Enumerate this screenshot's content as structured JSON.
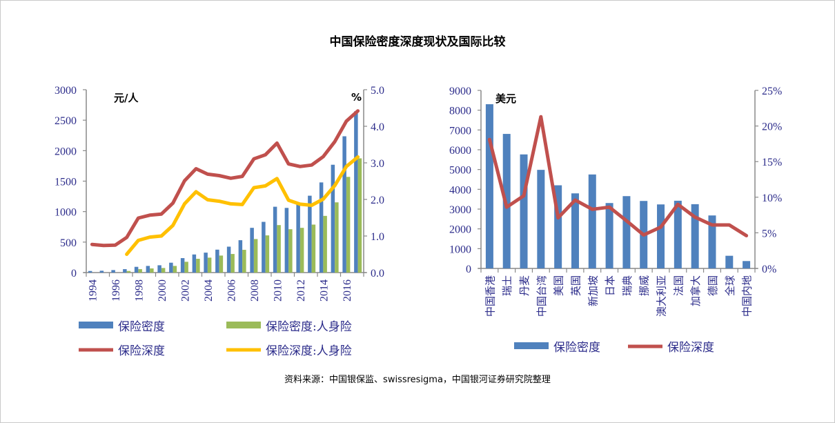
{
  "title": "中国保险密度深度现状及国际比较",
  "source": "资料来源：中国银保监、swissresigma，中国银河证券研究院整理",
  "colors": {
    "density": "#4f81bd",
    "life_density": "#9bbb59",
    "depth": "#c0504d",
    "life_depth": "#ffc000",
    "axis_text": "#2b2b8a"
  },
  "chart_data": [
    {
      "type": "bar+line",
      "left_unit": "元/人",
      "right_unit": "%",
      "ylim_left": [
        0,
        3000
      ],
      "yticks_left": [
        "0",
        "500",
        "1000",
        "1500",
        "2000",
        "2500",
        "3000"
      ],
      "ylim_right": [
        0,
        5
      ],
      "yticks_right": [
        "0.0",
        "1.0",
        "2.0",
        "3.0",
        "4.0",
        "5.0"
      ],
      "grid": false,
      "legend_placement": "bottom",
      "categories": [
        "1994",
        "1995",
        "1996",
        "1997",
        "1998",
        "1999",
        "2000",
        "2001",
        "2002",
        "2003",
        "2004",
        "2005",
        "2006",
        "2007",
        "2008",
        "2009",
        "2010",
        "2011",
        "2012",
        "2013",
        "2014",
        "2015",
        "2016",
        "2017"
      ],
      "xtick_labels": [
        "1994",
        "1996",
        "1998",
        "2000",
        "2002",
        "2004",
        "2006",
        "2008",
        "2010",
        "2012",
        "2014",
        "2016"
      ],
      "series": [
        {
          "name": "保险密度",
          "kind": "bar",
          "axis": "left",
          "values": [
            26,
            30,
            41,
            56,
            94,
            109,
            120,
            162,
            237,
            297,
            327,
            376,
            425,
            531,
            734,
            832,
            1080,
            1061,
            1144,
            1261,
            1479,
            1769,
            2236,
            2646
          ]
        },
        {
          "name": "保险密度:人身险",
          "kind": "bar",
          "axis": "left",
          "values": [
            null,
            null,
            null,
            26,
            56,
            68,
            75,
            109,
            177,
            226,
            245,
            279,
            305,
            373,
            550,
            610,
            779,
            711,
            734,
            787,
            930,
            1152,
            1570,
            1874
          ]
        },
        {
          "name": "保险深度",
          "kind": "line",
          "axis": "right",
          "values": [
            0.77,
            0.74,
            0.75,
            0.96,
            1.49,
            1.57,
            1.6,
            1.9,
            2.51,
            2.84,
            2.69,
            2.65,
            2.58,
            2.63,
            3.11,
            3.22,
            3.54,
            2.97,
            2.9,
            2.94,
            3.17,
            3.58,
            4.14,
            4.42
          ]
        },
        {
          "name": "保险深度:人身险",
          "kind": "line",
          "axis": "right",
          "values": [
            null,
            null,
            null,
            0.5,
            0.88,
            0.97,
            1.0,
            1.29,
            1.88,
            2.21,
            1.99,
            1.95,
            1.88,
            1.86,
            2.32,
            2.37,
            2.57,
            1.98,
            1.87,
            1.84,
            2.01,
            2.38,
            2.9,
            3.16
          ]
        }
      ]
    },
    {
      "type": "bar+line",
      "left_unit": "美元",
      "ylim_left": [
        0,
        9000
      ],
      "yticks_left": [
        "0",
        "1000",
        "2000",
        "3000",
        "4000",
        "5000",
        "6000",
        "7000",
        "8000",
        "9000"
      ],
      "ylim_right": [
        0,
        25
      ],
      "yticks_right": [
        "0%",
        "5%",
        "10%",
        "15%",
        "20%",
        "25%"
      ],
      "grid": false,
      "legend_placement": "bottom",
      "categories": [
        "中国香港",
        "瑞士",
        "丹麦",
        "中国台湾",
        "美国",
        "英国",
        "新加坡",
        "日本",
        "瑞典",
        "挪威",
        "澳大利亚",
        "法国",
        "加拿大",
        "德国",
        "全球",
        "中国内地"
      ],
      "series": [
        {
          "name": "保险密度",
          "kind": "bar",
          "axis": "left",
          "values": [
            8301,
            6800,
            5764,
            4983,
            4203,
            3795,
            4750,
            3306,
            3655,
            3411,
            3236,
            3422,
            3248,
            2678,
            640,
            373
          ]
        },
        {
          "name": "保险深度",
          "kind": "line",
          "axis": "right",
          "values": [
            18.1,
            8.6,
            10.2,
            21.3,
            7.1,
            9.6,
            8.3,
            8.6,
            6.7,
            4.7,
            5.8,
            9.0,
            7.2,
            6.1,
            6.1,
            4.6
          ]
        }
      ]
    }
  ]
}
